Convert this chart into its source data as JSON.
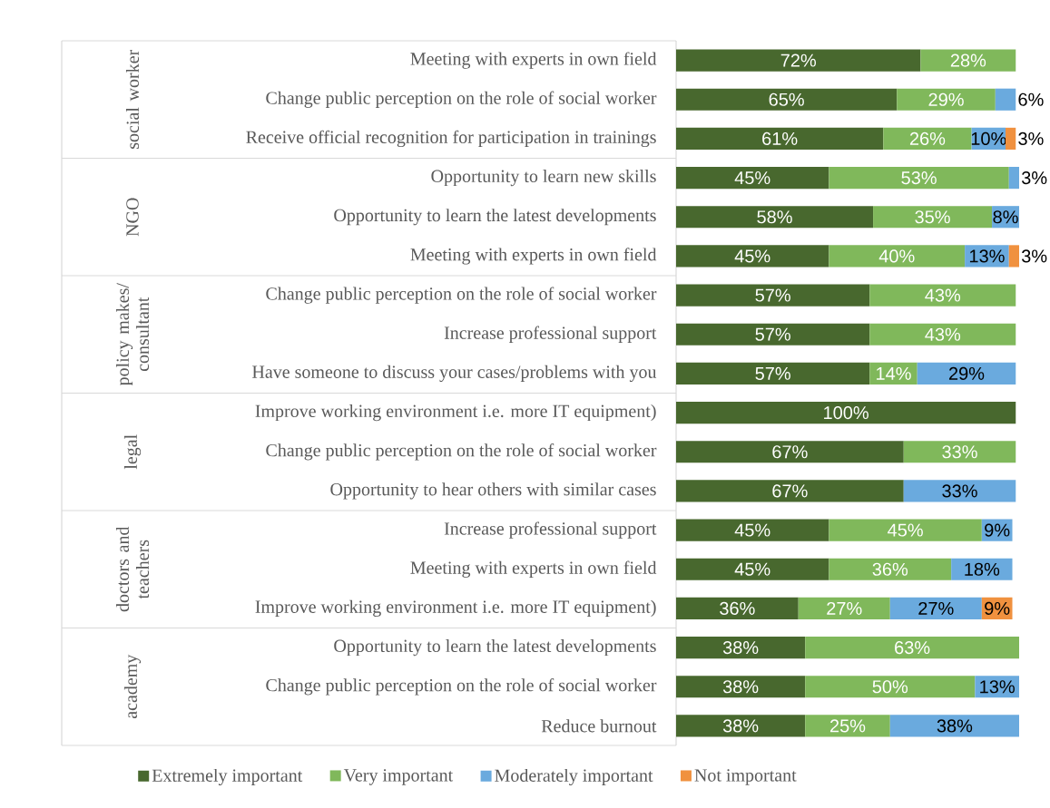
{
  "chart_data": {
    "type": "bar",
    "orientation": "horizontal",
    "stacked": true,
    "legend": "bottom",
    "categories": [
      "Meeting with experts in own field",
      "Change public perception on the role of social worker",
      "Receive official recognition for participation in trainings",
      "Opportunity to learn new skills",
      "Opportunity to learn the latest developments",
      "Meeting with experts in own field",
      "Change public perception on the role of social worker",
      "Increase professional support",
      "Have someone to discuss your cases/problems with you",
      "Improve  working environment i.e. more IT equipment)",
      "Change public perception on the role of social worker",
      "Opportunity to hear others with similar cases",
      "Increase professional support",
      "Meeting with experts in own field",
      "Improve  working environment i.e. more IT equipment)",
      "Opportunity to learn the latest developments",
      "Change public perception on the role of social worker",
      "Reduce burnout"
    ],
    "annotations": [
      "social worker",
      "NGO",
      "policy makes/ consultant",
      "legal",
      "doctors and teachers",
      "academy"
    ],
    "series": [
      {
        "name": "Extremely important",
        "color": "#48682e",
        "values": [
          72,
          65,
          61,
          45,
          58,
          45,
          57,
          57,
          57,
          100,
          67,
          67,
          45,
          45,
          36,
          38,
          38,
          38
        ],
        "value_labels": [
          "72%",
          "65%",
          "61%",
          "45%",
          "58%",
          "45%",
          "57%",
          "57%",
          "57%",
          "100%",
          "67%",
          "67%",
          "45%",
          "45%",
          "36%",
          "38%",
          "38%",
          "38%"
        ]
      },
      {
        "name": "Very important",
        "color": "#80b85b",
        "values": [
          28,
          29,
          26,
          53,
          35,
          40,
          43,
          43,
          14,
          null,
          33,
          null,
          45,
          36,
          27,
          63,
          50,
          25
        ],
        "value_labels": [
          "28%",
          "29%",
          "26%",
          "53%",
          "35%",
          "40%",
          "43%",
          "43%",
          "14%",
          null,
          "33%",
          null,
          "45%",
          "36%",
          "27%",
          "63%",
          "50%",
          "25%"
        ]
      },
      {
        "name": "Moderately important",
        "color": "#6aaade",
        "values": [
          null,
          6,
          10,
          3,
          8,
          13,
          null,
          null,
          29,
          null,
          null,
          33,
          9,
          18,
          27,
          null,
          13,
          38
        ],
        "value_labels": [
          null,
          "6%",
          "10%",
          "3%",
          "8%",
          "13%",
          null,
          null,
          "29%",
          null,
          null,
          "33%",
          "9%",
          "18%",
          "27%",
          null,
          "13%",
          "38%"
        ]
      },
      {
        "name": "Not important",
        "color": "#f0913f",
        "values": [
          null,
          null,
          3,
          null,
          null,
          3,
          null,
          null,
          null,
          null,
          null,
          null,
          null,
          null,
          9,
          null,
          null,
          null
        ],
        "value_labels": [
          null,
          null,
          "3%",
          null,
          null,
          "3%",
          null,
          null,
          null,
          null,
          null,
          null,
          null,
          null,
          "9%",
          null,
          null,
          null
        ]
      }
    ]
  }
}
